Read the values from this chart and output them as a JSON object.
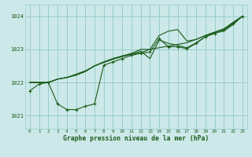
{
  "background_color": "#cce8e8",
  "grid_color": "#99cccc",
  "line_color": "#1a5c1a",
  "marker_color": "#1a5c1a",
  "xlabel": "Graphe pression niveau de la mer (hPa)",
  "xlim": [
    -0.5,
    23.5
  ],
  "ylim": [
    1020.6,
    1024.35
  ],
  "yticks": [
    1021,
    1022,
    1023,
    1024
  ],
  "xticks": [
    0,
    1,
    2,
    3,
    4,
    5,
    6,
    7,
    8,
    9,
    10,
    11,
    12,
    13,
    14,
    15,
    16,
    17,
    18,
    19,
    20,
    21,
    22,
    23
  ],
  "series_no_marker": [
    [
      1022.0,
      1022.0,
      1022.0,
      1022.1,
      1022.15,
      1022.25,
      1022.35,
      1022.5,
      1022.6,
      1022.7,
      1022.78,
      1022.85,
      1022.9,
      1023.0,
      1023.05,
      1023.1,
      1023.15,
      1023.2,
      1023.3,
      1023.42,
      1023.52,
      1023.62,
      1023.8,
      1024.0
    ],
    [
      1022.0,
      1022.0,
      1022.0,
      1022.1,
      1022.15,
      1022.22,
      1022.33,
      1022.5,
      1022.62,
      1022.72,
      1022.8,
      1022.88,
      1023.0,
      1023.0,
      1023.42,
      1023.55,
      1023.6,
      1023.25,
      1023.3,
      1023.42,
      1023.52,
      1023.62,
      1023.82,
      1024.0
    ],
    [
      1022.0,
      1022.0,
      1022.0,
      1022.1,
      1022.15,
      1022.22,
      1022.33,
      1022.5,
      1022.62,
      1022.72,
      1022.8,
      1022.85,
      1022.95,
      1022.72,
      1023.28,
      1023.18,
      1023.12,
      1023.05,
      1023.2,
      1023.38,
      1023.5,
      1023.55,
      1023.75,
      1024.0
    ]
  ],
  "series_marker": [
    1021.75,
    1021.95,
    1022.0,
    1021.35,
    1021.18,
    1021.18,
    1021.28,
    1021.35,
    1022.52,
    1022.62,
    1022.72,
    1022.82,
    1022.88,
    1022.92,
    1023.32,
    1023.08,
    1023.08,
    1023.02,
    1023.18,
    1023.38,
    1023.48,
    1023.58,
    1023.78,
    1024.0
  ]
}
